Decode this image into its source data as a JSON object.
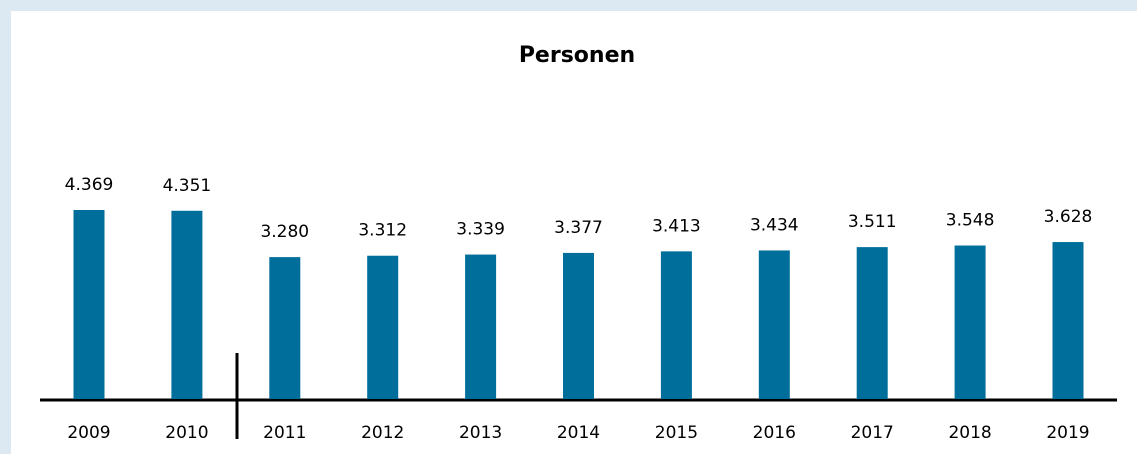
{
  "chart_data": {
    "type": "bar",
    "title": "Personen",
    "categories": [
      "2009",
      "2010",
      "2011",
      "2012",
      "2013",
      "2014",
      "2015",
      "2016",
      "2017",
      "2018",
      "2019"
    ],
    "values": [
      4369,
      4351,
      3280,
      3312,
      3339,
      3377,
      3413,
      3434,
      3511,
      3548,
      3628
    ],
    "value_labels": [
      "4.369",
      "4.351",
      "3.280",
      "3.312",
      "3.339",
      "3.377",
      "3.413",
      "3.434",
      "3.511",
      "3.548",
      "3.628"
    ],
    "color": "#006e9a"
  }
}
